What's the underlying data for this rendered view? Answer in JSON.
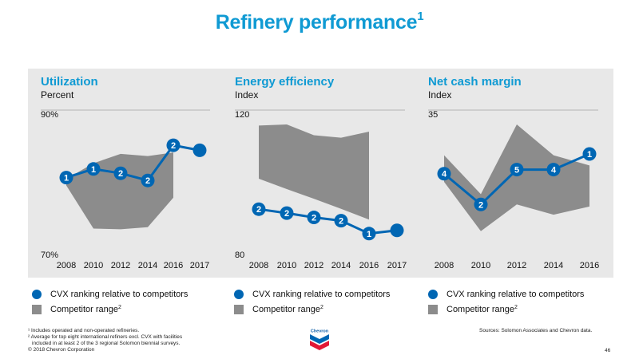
{
  "slide": {
    "title": "Refinery performance",
    "title_sup": "1",
    "footnotes": [
      "¹ Includes operated and non-operated refineries.",
      "² Average for top eight international refiners excl. CVX with facilities",
      "included in at least 2 of the 3 regional Solomon biennial surveys."
    ],
    "copyright": "© 2018 Chevron Corporation",
    "sources": "Sources: Solomon Associates and Chevron data.",
    "page_number": "46",
    "logo_text": "Chevron"
  },
  "legend": {
    "cvx_label": "CVX ranking relative to competitors",
    "range_label": "Competitor range",
    "range_sup": "2"
  },
  "colors": {
    "title": "#0f9ad3",
    "cvx_line": "#0066b3",
    "range_fill": "#8c8c8c",
    "panel_bg": "#e8e8e8"
  },
  "chart_data": [
    {
      "type": "line",
      "title": "Utilization",
      "ylabel": "Percent",
      "ylim": [
        70,
        90
      ],
      "ytick_labels": [
        "90%",
        "70%"
      ],
      "x": [
        2008,
        2010,
        2012,
        2014,
        2016,
        2017
      ],
      "range_low": [
        79.5,
        73.5,
        73.4,
        73.7,
        77.8,
        null
      ],
      "range_high": [
        80.4,
        82.6,
        83.9,
        83.6,
        84.1,
        null
      ],
      "series": [
        {
          "values": [
            80.6,
            81.8,
            81.2,
            80.2,
            85.1,
            84.4
          ],
          "labels": [
            "1",
            "1",
            "2",
            "2",
            "2",
            ""
          ]
        }
      ]
    },
    {
      "type": "line",
      "title": "Energy efficiency",
      "ylabel": "Index",
      "ylim": [
        80,
        120
      ],
      "ytick_labels": [
        "120",
        "80"
      ],
      "x": [
        2008,
        2010,
        2012,
        2014,
        2016,
        2017
      ],
      "range_low": [
        100.9,
        98.0,
        95.3,
        92.5,
        89.5,
        null
      ],
      "range_high": [
        115.7,
        116.0,
        113.0,
        112.3,
        114.0,
        null
      ],
      "series": [
        {
          "values": [
            92.4,
            91.3,
            90.1,
            89.2,
            85.6,
            86.5
          ],
          "labels": [
            "2",
            "2",
            "2",
            "2",
            "1",
            ""
          ]
        }
      ]
    },
    {
      "type": "line",
      "title": "Net cash margin",
      "ylabel": "Index",
      "ylim": [
        0,
        35
      ],
      "x": [
        2008,
        2010,
        2012,
        2014,
        2016
      ],
      "x_ticks": [
        2008,
        2010,
        2012,
        2014,
        2016
      ],
      "range_low": [
        17.5,
        5.5,
        12.0,
        9.5,
        11.5
      ],
      "range_high": [
        24.0,
        14.5,
        31.5,
        24.0,
        21.5
      ],
      "series": [
        {
          "values": [
            19.5,
            12.0,
            20.5,
            20.5,
            24.3
          ],
          "labels": [
            "4",
            "2",
            "5",
            "4",
            "1"
          ]
        }
      ]
    }
  ]
}
